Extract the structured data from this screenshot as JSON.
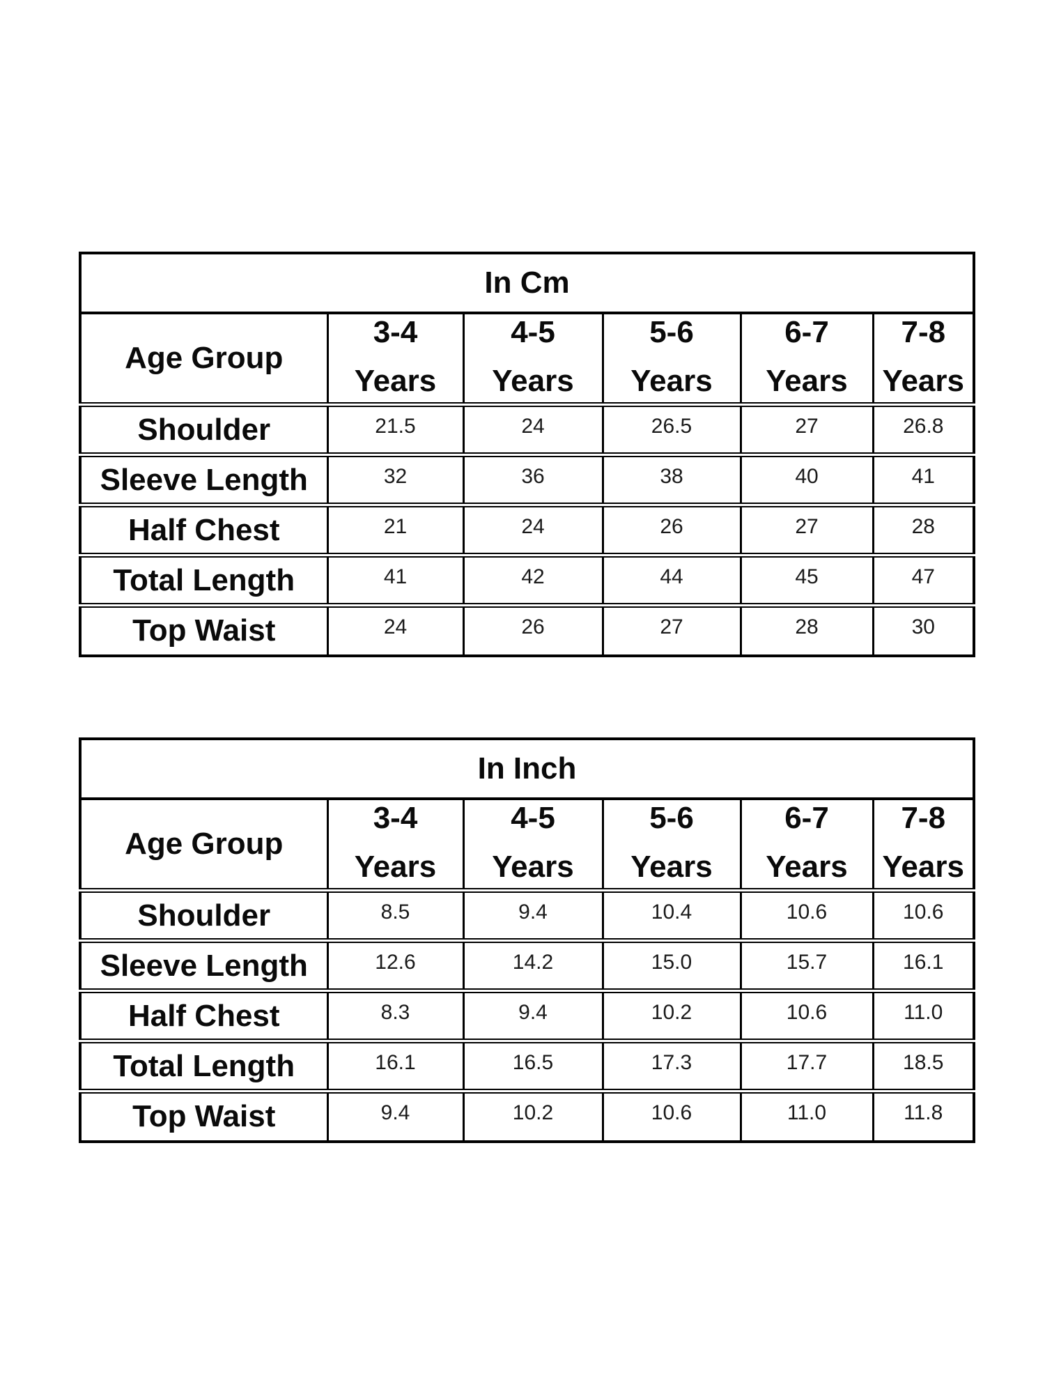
{
  "page": {
    "background": "#ffffff",
    "border_color": "#000000",
    "text_color": "#0a0a0a",
    "value_text_color": "#1a1a1a"
  },
  "tables": [
    {
      "title": "In Cm",
      "header": {
        "corner": "Age Group",
        "columns": [
          {
            "range": "3-4",
            "unit": "Years"
          },
          {
            "range": "4-5",
            "unit": "Years"
          },
          {
            "range": "5-6",
            "unit": "Years"
          },
          {
            "range": "6-7",
            "unit": "Years"
          },
          {
            "range": "7-8",
            "unit": "Years"
          }
        ]
      },
      "rows": [
        {
          "label": "Shoulder",
          "values": [
            "21.5",
            "24",
            "26.5",
            "27",
            "26.8"
          ]
        },
        {
          "label": "Sleeve Length",
          "values": [
            "32",
            "36",
            "38",
            "40",
            "41"
          ]
        },
        {
          "label": "Half Chest",
          "values": [
            "21",
            "24",
            "26",
            "27",
            "28"
          ]
        },
        {
          "label": "Total Length",
          "values": [
            "41",
            "42",
            "44",
            "45",
            "47"
          ]
        },
        {
          "label": "Top Waist",
          "values": [
            "24",
            "26",
            "27",
            "28",
            "30"
          ]
        }
      ]
    },
    {
      "title": "In Inch",
      "header": {
        "corner": "Age Group",
        "columns": [
          {
            "range": "3-4",
            "unit": "Years"
          },
          {
            "range": "4-5",
            "unit": "Years"
          },
          {
            "range": "5-6",
            "unit": "Years"
          },
          {
            "range": "6-7",
            "unit": "Years"
          },
          {
            "range": "7-8",
            "unit": "Years"
          }
        ]
      },
      "rows": [
        {
          "label": "Shoulder",
          "values": [
            "8.5",
            "9.4",
            "10.4",
            "10.6",
            "10.6"
          ]
        },
        {
          "label": "Sleeve Length",
          "values": [
            "12.6",
            "14.2",
            "15.0",
            "15.7",
            "16.1"
          ]
        },
        {
          "label": "Half Chest",
          "values": [
            "8.3",
            "9.4",
            "10.2",
            "10.6",
            "11.0"
          ]
        },
        {
          "label": "Total Length",
          "values": [
            "16.1",
            "16.5",
            "17.3",
            "17.7",
            "18.5"
          ]
        },
        {
          "label": "Top Waist",
          "values": [
            "9.4",
            "10.2",
            "10.6",
            "11.0",
            "11.8"
          ]
        }
      ]
    }
  ],
  "layout_meta": {
    "table_names": [
      "size-table-cm",
      "size-table-inch"
    ]
  }
}
